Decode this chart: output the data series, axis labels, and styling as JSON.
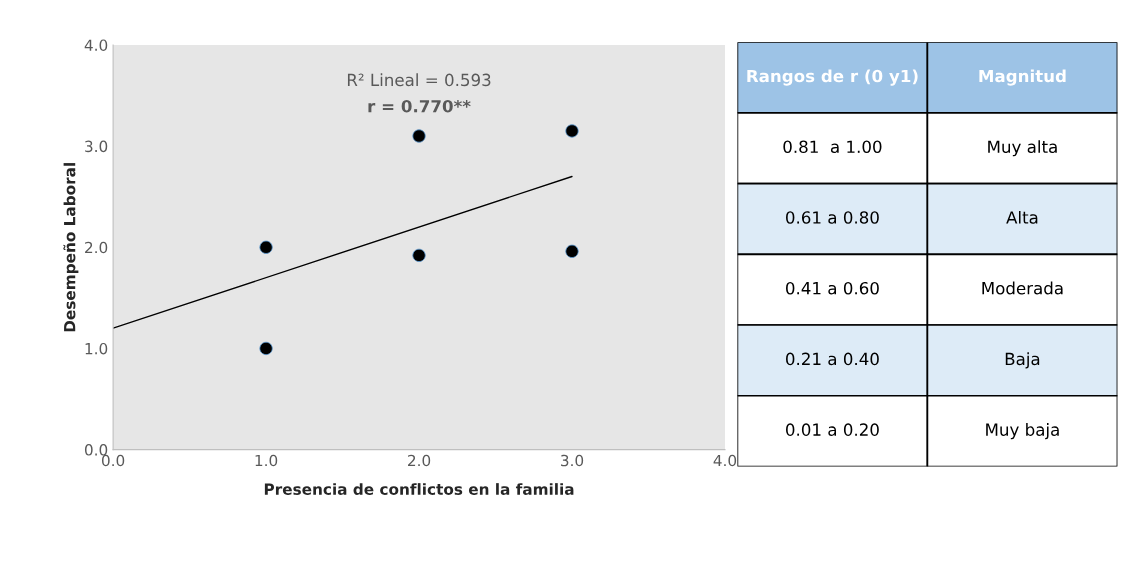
{
  "chart_data": [
    {
      "type": "scatter",
      "xlabel": "Presencia de conflictos en la familia",
      "ylabel": "Desempeño Laboral",
      "xlim": [
        0,
        4
      ],
      "xticks": [
        {
          "value": 0,
          "label": "0.0"
        },
        {
          "value": 1,
          "label": "1.0"
        },
        {
          "value": 2,
          "label": "2.0"
        },
        {
          "value": 3,
          "label": "3.0"
        },
        {
          "value": 4,
          "label": "4.0"
        }
      ],
      "ylim": [
        0,
        4
      ],
      "yticks": [
        {
          "value": 0,
          "label": "0.0"
        },
        {
          "value": 1,
          "label": "1.0"
        },
        {
          "value": 2,
          "label": "2.0"
        },
        {
          "value": 3,
          "label": "3.0"
        },
        {
          "value": 4,
          "label": "4.0"
        }
      ],
      "grid": false,
      "legend": false,
      "series": [
        {
          "type": "scatter",
          "color": "#000000",
          "marker": "circle",
          "x": [
            1,
            1,
            2,
            2,
            3,
            3
          ],
          "values": [
            2.0,
            1.0,
            3.1,
            1.92,
            3.15,
            1.96
          ]
        },
        {
          "type": "line",
          "color": "#000000",
          "marker": "none",
          "line_style": "solid",
          "x": [
            0,
            3
          ],
          "values": [
            1.2,
            2.7
          ]
        }
      ],
      "annotations": [
        "R² Lineal = 0.593",
        "r = 0.770**"
      ]
    },
    {
      "type": "other",
      "annotations": [
        "Rangos de r (0 y1)",
        "Magnitud",
        "0.81  a 1.00",
        "Muy alta",
        "0.61 a 0.80",
        "Alta",
        "0.41 a 0.60",
        "Moderada",
        "0.21 a 0.40",
        "Baja",
        "0.01 a 0.20",
        "Muy baja"
      ]
    }
  ]
}
